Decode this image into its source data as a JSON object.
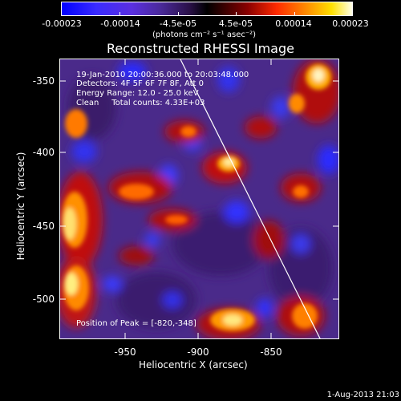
{
  "colorbar": {
    "tick_labels": [
      "-0.00023",
      "-0.00014",
      "-4.5e-05",
      "4.5e-05",
      "0.00014",
      "0.00023"
    ],
    "units_text": "(photons cm⁻² s⁻¹ asec⁻²)"
  },
  "title": "Reconstructed RHESSI Image",
  "overlay": {
    "time_range": "19-Jan-2010 20:00:36.000 to 20:03:48.000",
    "detectors": "Detectors: 4F 5F 6F 7F 8F, Att 0",
    "energy_range": "Energy Range: 12.0 - 25.0 keV",
    "clean_counts": "Clean     Total counts: 4.33E+03",
    "peak_position": "Position of Peak = [-820,-348]"
  },
  "axes": {
    "x_label": "Heliocentric X (arcsec)",
    "y_label": "Heliocentric Y (arcsec)",
    "x_ticks": [
      "-950",
      "-900",
      "-850"
    ],
    "y_ticks": [
      "-350",
      "-400",
      "-450",
      "-500"
    ]
  },
  "timestamp": "1-Aug-2013 21:03"
}
